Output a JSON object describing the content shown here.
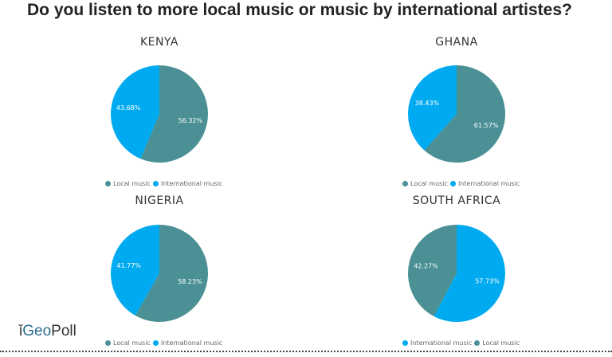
{
  "title": "Do you listen to more local music or music by international artistes?",
  "logo": {
    "text_geo": "Geo",
    "text_poll": "Poll"
  },
  "chart_data": [
    {
      "type": "pie",
      "title": "KENYA",
      "slices": [
        {
          "label": "Local music",
          "value": 56.32,
          "color": "#4a9094",
          "text": "56.32%"
        },
        {
          "label": "International music",
          "value": 43.68,
          "color": "#00aaf0",
          "text": "43.68%"
        }
      ],
      "legend": "bottom"
    },
    {
      "type": "pie",
      "title": "GHANA",
      "slices": [
        {
          "label": "Local music",
          "value": 61.57,
          "color": "#4a9094",
          "text": "61.57%"
        },
        {
          "label": "International music",
          "value": 38.43,
          "color": "#00aaf0",
          "text": "38.43%"
        }
      ],
      "legend": "bottom"
    },
    {
      "type": "pie",
      "title": "NIGERIA",
      "slices": [
        {
          "label": "Local music",
          "value": 58.23,
          "color": "#4a9094",
          "text": "58.23%"
        },
        {
          "label": "International music",
          "value": 41.77,
          "color": "#00aaf0",
          "text": "41.77%"
        }
      ],
      "legend": "bottom"
    },
    {
      "type": "pie",
      "title": "SOUTH AFRICA",
      "slices": [
        {
          "label": "International music",
          "value": 57.73,
          "color": "#00aaf0",
          "text": "57.73%"
        },
        {
          "label": "Local music",
          "value": 42.27,
          "color": "#4a9094",
          "text": "42.27%"
        }
      ],
      "legend": "bottom"
    }
  ]
}
